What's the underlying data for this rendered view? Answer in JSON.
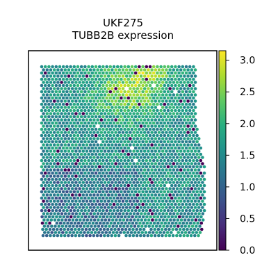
{
  "chart_data": {
    "type": "scatter",
    "subtype": "spatial-expression-spots",
    "title_lines": [
      "UKF275",
      "TUBB2B expression"
    ],
    "xlabel": "",
    "ylabel": "",
    "colorbar": {
      "colormap": "viridis",
      "range": [
        0.0,
        3.15
      ],
      "ticks": [
        0.0,
        0.5,
        1.0,
        1.5,
        2.0,
        2.5,
        3.0
      ],
      "tick_labels": [
        "0.0",
        "0.5",
        "1.0",
        "1.5",
        "2.0",
        "2.5",
        "3.0"
      ]
    },
    "value_summary": {
      "typical": 1.6,
      "high_region": "upper-center (approx. 2.5–3.1)",
      "lower_region": "lower-left (approx. 0.8–1.4)",
      "zero_spots": "scattered, mostly lower and right"
    },
    "colors": {
      "low": "#440154",
      "mid": "#21918c",
      "high": "#fde725",
      "frame": "#000000"
    },
    "grid": false,
    "legend": "colorbar-right"
  }
}
